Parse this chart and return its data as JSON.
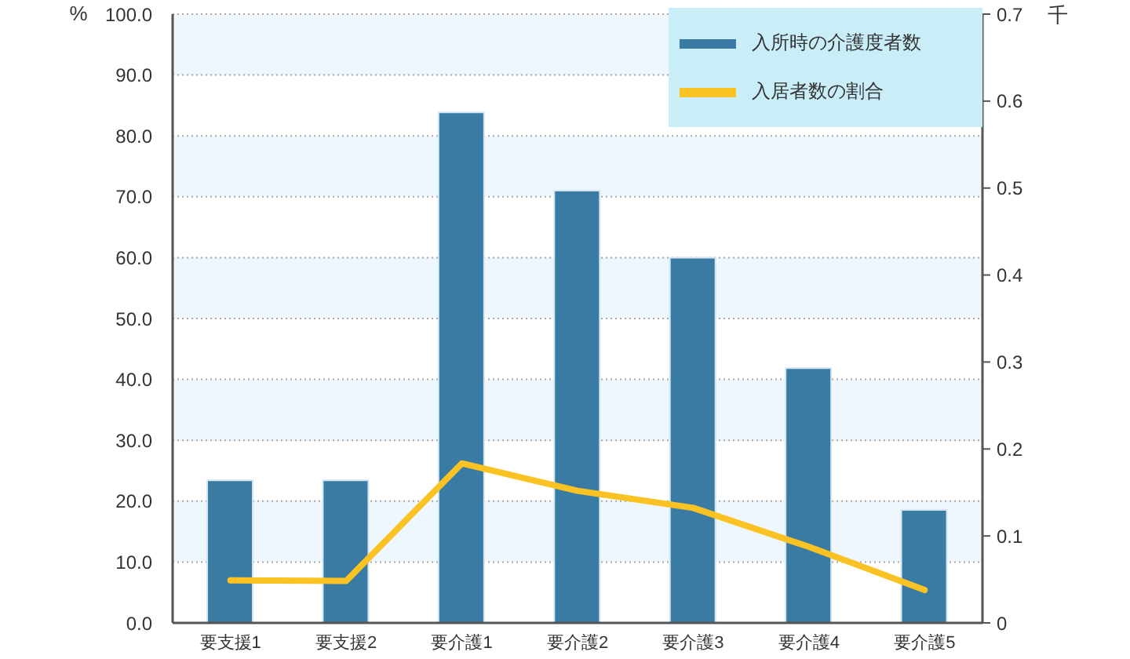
{
  "chart_data": {
    "type": "bar",
    "categories": [
      "要支援1",
      "要支援2",
      "要介護1",
      "要介護2",
      "要介護3",
      "要介護4",
      "要介護5"
    ],
    "series": [
      {
        "name": "入所時の介護度者数",
        "axis": "y2",
        "color": "#3a7ba4",
        "values": [
          0.164,
          0.164,
          0.587,
          0.497,
          0.42,
          0.293,
          0.13
        ]
      },
      {
        "name": "入居者数の割合",
        "type": "line",
        "axis": "y",
        "color": "#fbc223",
        "values": [
          7.0,
          6.9,
          26.2,
          21.7,
          18.9,
          12.5,
          5.4
        ]
      }
    ],
    "ylabel": "%",
    "y2label": "千",
    "ylim": [
      0,
      100
    ],
    "yticks": [
      {
        "value": 0,
        "label": "0.0"
      },
      {
        "value": 10,
        "label": "10.0"
      },
      {
        "value": 20,
        "label": "20.0"
      },
      {
        "value": 30,
        "label": "30.0"
      },
      {
        "value": 40,
        "label": "40.0"
      },
      {
        "value": 50,
        "label": "50.0"
      },
      {
        "value": 60,
        "label": "60.0"
      },
      {
        "value": 70,
        "label": "70.0"
      },
      {
        "value": 80,
        "label": "80.0"
      },
      {
        "value": 90,
        "label": "90.0"
      },
      {
        "value": 100,
        "label": "100.0"
      }
    ],
    "y2lim": [
      0,
      0.7
    ],
    "y2ticks": [
      0,
      0.1,
      0.2,
      0.3,
      0.4,
      0.5,
      0.6,
      0.7
    ],
    "grid": "y",
    "legend": "top right",
    "marker": "none",
    "line_style": "solid"
  }
}
